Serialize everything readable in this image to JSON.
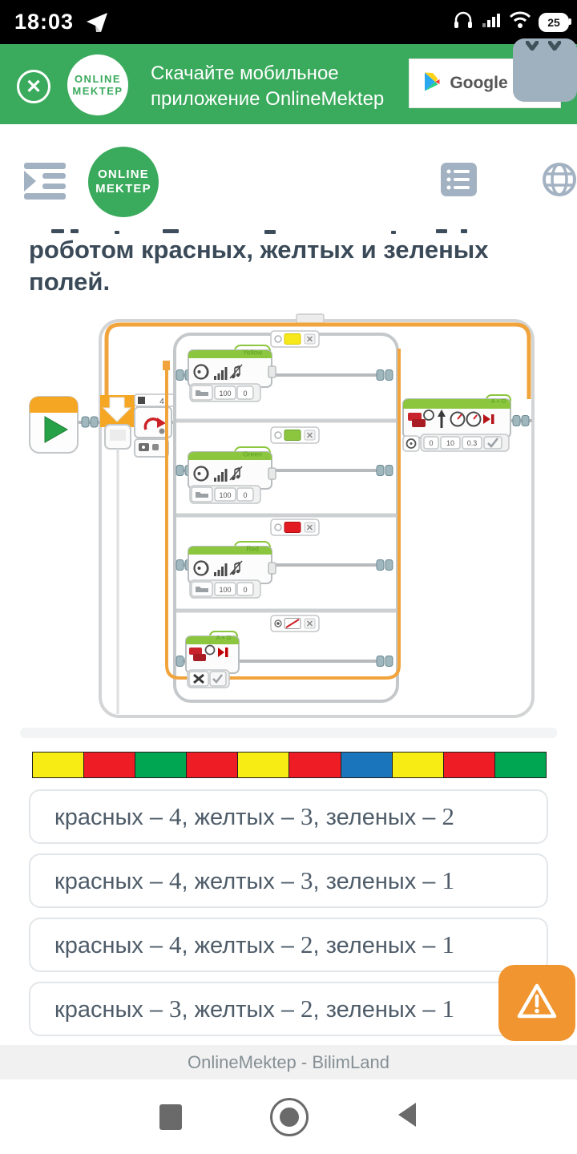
{
  "status_bar": {
    "time": "18:03",
    "battery": "25"
  },
  "brand": {
    "logo_line1": "ONLINE",
    "logo_line2": "MEKTEP"
  },
  "banner": {
    "text_line1": "Скачайте мобильное",
    "text_line2": "приложение OnlineMektep",
    "google_play": "Google Play"
  },
  "question": {
    "text": "роботом красных, желтых и зеленых полей."
  },
  "diagram": {
    "loop_count": "4",
    "case_labels": [
      "Yellow",
      "Green",
      "Red"
    ],
    "sound_volume": "100",
    "sound_level": "0",
    "motor_label": "A + D",
    "move_values": [
      "0",
      "10",
      "0.3"
    ]
  },
  "strip": {
    "colors": [
      "yellow",
      "red",
      "green",
      "red",
      "yellow",
      "red",
      "blue",
      "yellow",
      "red",
      "green"
    ],
    "palette": {
      "yellow": "#f7ec13",
      "red": "#ee1c24",
      "green": "#00a651",
      "blue": "#1b75bc"
    }
  },
  "options": [
    "красных – 4, желтых – 3, зеленых – 2",
    "красных – 4, желтых – 3, зеленых – 1",
    "красных – 4, желтых – 2, зеленых – 1",
    "красных – 3, желтых – 2, зеленых – 1"
  ],
  "footer": {
    "text": "OnlineMektep - BilimLand"
  },
  "colors": {
    "brand_green": "#3aaa5c",
    "accent_orange": "#f0952f"
  }
}
